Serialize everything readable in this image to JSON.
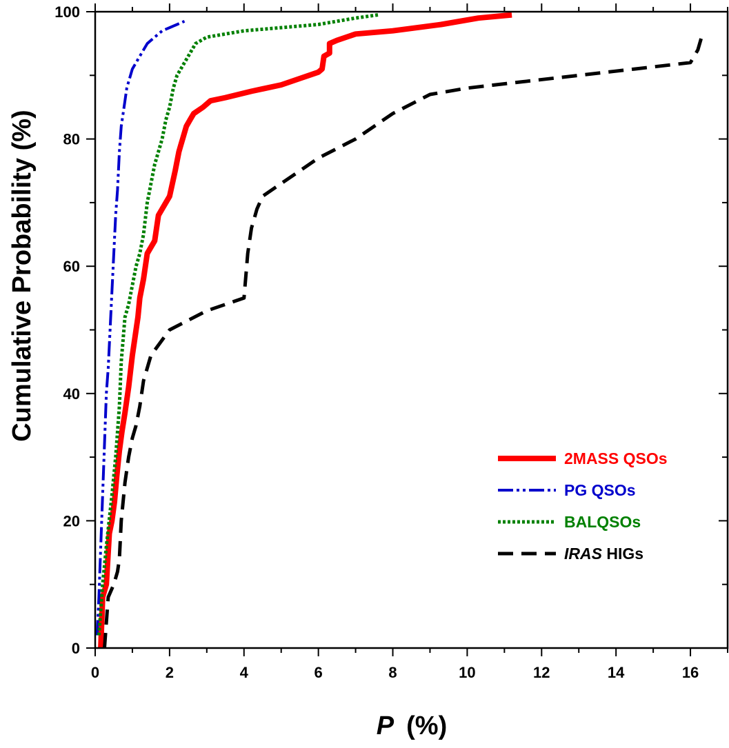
{
  "chart_data": {
    "type": "line",
    "title": "",
    "xlabel": {
      "symbol": "P",
      "unit": "(%)"
    },
    "ylabel": "Cumulative Probability (%)",
    "xlim": [
      0,
      17
    ],
    "ylim": [
      0,
      100
    ],
    "x_ticks": [
      0,
      2,
      4,
      6,
      8,
      10,
      12,
      14,
      16
    ],
    "y_ticks": [
      0,
      20,
      40,
      60,
      80,
      100
    ],
    "x_tick_labels": [
      "0",
      "2",
      "4",
      "6",
      "8",
      "10",
      "12",
      "14",
      "16"
    ],
    "y_tick_labels": [
      "0",
      "20",
      "40",
      "60",
      "80",
      "100"
    ],
    "grid": false,
    "legend_position": "bottom-right",
    "series": [
      {
        "id": "2mass",
        "name": "2MASS QSOs",
        "legend": {
          "italic": "",
          "rest": "2MASS QSOs"
        },
        "color": "#ff0000",
        "style": "solid",
        "x": [
          0.15,
          0.2,
          0.3,
          0.38,
          0.45,
          0.52,
          0.58,
          0.65,
          0.72,
          0.8,
          0.9,
          1.0,
          1.05,
          1.15,
          1.2,
          1.3,
          1.35,
          1.4,
          1.5,
          1.6,
          1.7,
          1.8,
          2.0,
          2.15,
          2.25,
          2.3,
          2.35,
          2.45,
          2.55,
          2.65,
          2.9,
          3.1,
          3.5,
          4.2,
          5.0,
          5.5,
          6.0,
          6.1,
          6.15,
          6.3,
          6.3,
          6.5,
          7.0,
          8.0,
          9.3,
          10.3,
          11.2
        ],
        "y": [
          0,
          8,
          10,
          18,
          20,
          23,
          27,
          31,
          34,
          37,
          41,
          46,
          48,
          52,
          55,
          58,
          60,
          62,
          63,
          64,
          68,
          69,
          71,
          75,
          78,
          79,
          80,
          82,
          83,
          84,
          85,
          86,
          86.5,
          87.5,
          88.5,
          89.5,
          90.5,
          91,
          93,
          93.5,
          95,
          95.5,
          96.5,
          97,
          98,
          99,
          99.5
        ]
      },
      {
        "id": "pg",
        "name": "PG QSOs",
        "legend": {
          "italic": "",
          "rest": "PG QSOs"
        },
        "color": "#0000cc",
        "style": "dashdotdot",
        "x": [
          0.05,
          0.1,
          0.15,
          0.2,
          0.25,
          0.3,
          0.35,
          0.4,
          0.45,
          0.5,
          0.55,
          0.6,
          0.65,
          0.7,
          0.75,
          0.8,
          0.85,
          0.9,
          1.0,
          1.1,
          1.2,
          1.3,
          1.4,
          1.6,
          1.8,
          2.0,
          2.2,
          2.4
        ],
        "y": [
          2,
          8,
          16,
          24,
          32,
          40,
          44,
          50,
          56,
          62,
          68,
          72,
          78,
          82,
          84,
          86,
          88,
          89,
          91,
          92,
          93,
          94,
          95,
          96,
          97,
          97.5,
          98,
          98.5
        ]
      },
      {
        "id": "bal",
        "name": "BALQSOs",
        "legend": {
          "italic": "",
          "rest": "BALQSOs"
        },
        "color": "#008000",
        "style": "dotted",
        "x": [
          0.1,
          0.2,
          0.3,
          0.45,
          0.55,
          0.65,
          0.7,
          0.8,
          0.9,
          1.0,
          1.1,
          1.2,
          1.3,
          1.4,
          1.5,
          1.6,
          1.7,
          1.8,
          1.9,
          2.0,
          2.1,
          2.2,
          2.3,
          2.5,
          2.7,
          3.0,
          3.5,
          4.0,
          5.0,
          6.0,
          7.0,
          7.6
        ],
        "y": [
          2,
          10,
          16,
          24,
          30,
          38,
          45,
          52,
          54,
          57,
          60,
          62,
          65,
          70,
          73,
          76,
          78,
          80,
          83,
          85,
          88,
          90,
          91,
          93,
          95,
          96,
          96.5,
          97,
          97.5,
          98,
          99,
          99.5
        ]
      },
      {
        "id": "iras",
        "name": "IRAS HIGs",
        "legend": {
          "italic": "IRAS",
          "rest": " HIGs"
        },
        "color": "#000000",
        "style": "dashed",
        "x": [
          0.25,
          0.35,
          0.5,
          0.6,
          0.65,
          0.7,
          0.8,
          0.9,
          1.0,
          1.1,
          1.2,
          1.3,
          1.5,
          2.0,
          3.0,
          4.0,
          4.1,
          4.2,
          4.25,
          4.35,
          4.5,
          5.0,
          5.5,
          6.0,
          7.0,
          8.0,
          9.0,
          10.0,
          11.5,
          13.0,
          14.5,
          16.0,
          16.2,
          16.3
        ],
        "y": [
          0,
          8,
          10,
          12,
          14,
          20,
          26,
          30,
          33,
          35,
          38,
          42,
          46,
          50,
          53,
          55,
          62,
          66,
          67,
          69,
          71,
          73,
          75,
          77,
          80,
          84,
          87,
          88,
          89,
          90,
          91,
          92,
          94,
          96
        ]
      }
    ]
  }
}
